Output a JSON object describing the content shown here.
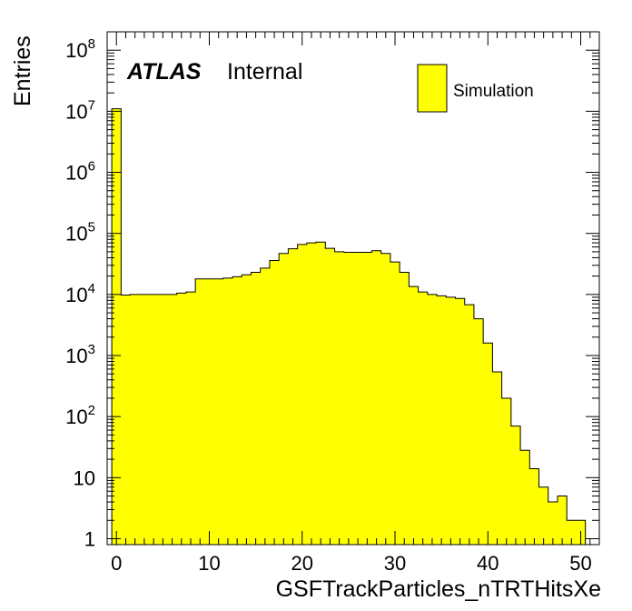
{
  "chart_data": {
    "type": "bar",
    "style": "histogram",
    "xlabel": "GSFTrackParticles_nTRTHitsXe",
    "ylabel": "Entries",
    "ylog": true,
    "xlim": [
      -1,
      52
    ],
    "ylim": [
      0.8,
      200000000
    ],
    "bin_width": 1,
    "bin_edges_start": -0.5,
    "x_ticks": [
      0,
      10,
      20,
      30,
      40,
      50
    ],
    "y_ticks": [
      {
        "value": 1,
        "label": "1"
      },
      {
        "value": 10,
        "label": "10"
      },
      {
        "value": 100,
        "base": "10",
        "exp": "2"
      },
      {
        "value": 1000,
        "base": "10",
        "exp": "3"
      },
      {
        "value": 10000,
        "base": "10",
        "exp": "4"
      },
      {
        "value": 100000,
        "base": "10",
        "exp": "5"
      },
      {
        "value": 1000000,
        "base": "10",
        "exp": "6"
      },
      {
        "value": 10000000,
        "base": "10",
        "exp": "7"
      },
      {
        "value": 100000000,
        "base": "10",
        "exp": "8"
      }
    ],
    "fill_color": "#ffff00",
    "line_color": "#000000",
    "series": [
      {
        "name": "Simulation",
        "x": [
          0,
          1,
          2,
          3,
          4,
          5,
          6,
          7,
          8,
          9,
          10,
          11,
          12,
          13,
          14,
          15,
          16,
          17,
          18,
          19,
          20,
          21,
          22,
          23,
          24,
          25,
          26,
          27,
          28,
          29,
          30,
          31,
          32,
          33,
          34,
          35,
          36,
          37,
          38,
          39,
          40,
          41,
          42,
          43,
          44,
          45,
          46,
          47,
          48,
          49,
          50
        ],
        "values": [
          11000000,
          9800,
          10000,
          10000,
          10000,
          10000,
          10000,
          10500,
          11000,
          18000,
          18000,
          18000,
          18500,
          19500,
          21000,
          23000,
          27000,
          36000,
          47000,
          56000,
          66000,
          70000,
          72000,
          57000,
          50000,
          49000,
          49000,
          49000,
          52000,
          47000,
          34000,
          23000,
          13500,
          11000,
          10000,
          9500,
          9000,
          8600,
          6800,
          4000,
          1600,
          540,
          200,
          70,
          28,
          14,
          7,
          4,
          5,
          2,
          2
        ]
      }
    ]
  },
  "header": {
    "atlas_label": "ATLAS",
    "status_label": "Internal"
  },
  "legend": {
    "entries": [
      {
        "label": "Simulation",
        "color": "#ffff00"
      }
    ]
  }
}
